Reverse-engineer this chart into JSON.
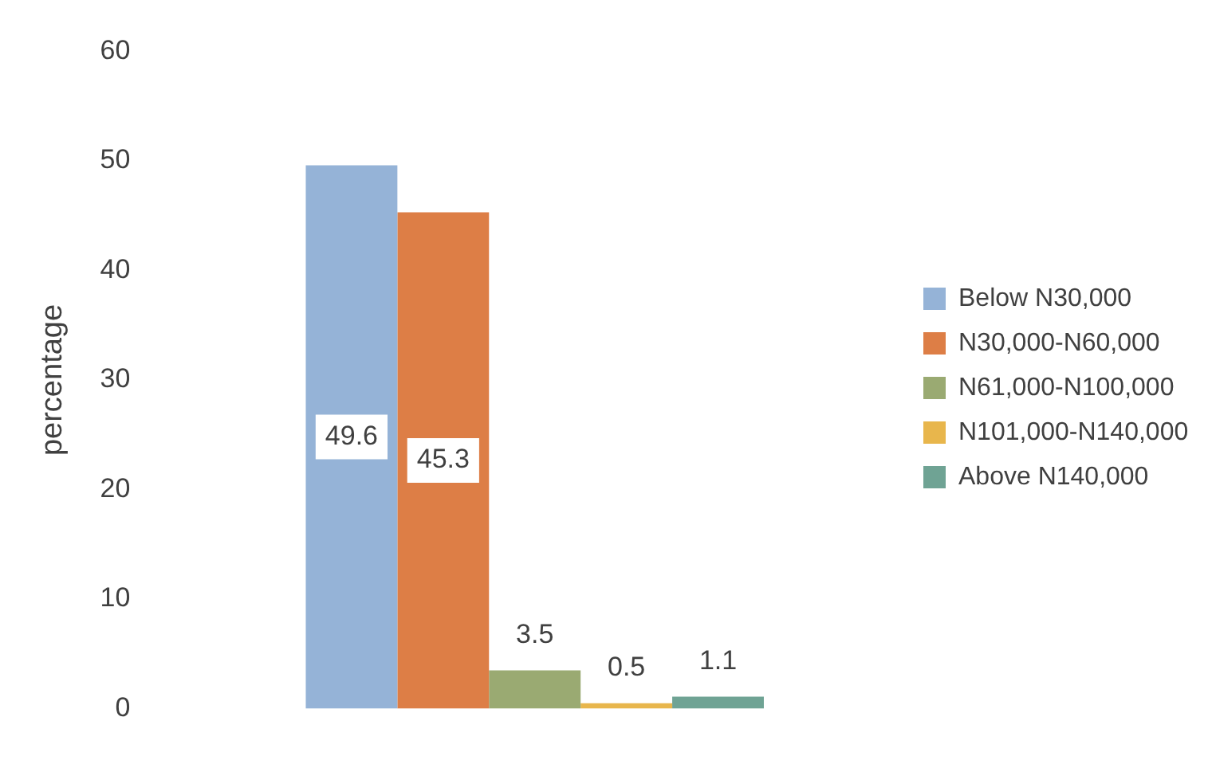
{
  "chart_data": {
    "type": "bar",
    "ylabel": "percentage",
    "categories": [
      null
    ],
    "series": [
      {
        "name": "Below N30,000",
        "color": "#95b3d7",
        "values": [
          49.6
        ]
      },
      {
        "name": "N30,000-N60,000",
        "color": "#dd7e46",
        "values": [
          45.3
        ]
      },
      {
        "name": "N61,000-N100,000",
        "color": "#9aaa72",
        "values": [
          3.5
        ]
      },
      {
        "name": "N101,000-N140,000",
        "color": "#e8b64c",
        "values": [
          0.5
        ]
      },
      {
        "name": "Above N140,000",
        "color": "#6fa394",
        "values": [
          1.1
        ]
      }
    ],
    "ylim": [
      0,
      60
    ],
    "yticks": [
      0,
      10,
      20,
      30,
      40,
      50,
      60
    ],
    "grid": false,
    "legend": "right",
    "data_labels": true
  }
}
